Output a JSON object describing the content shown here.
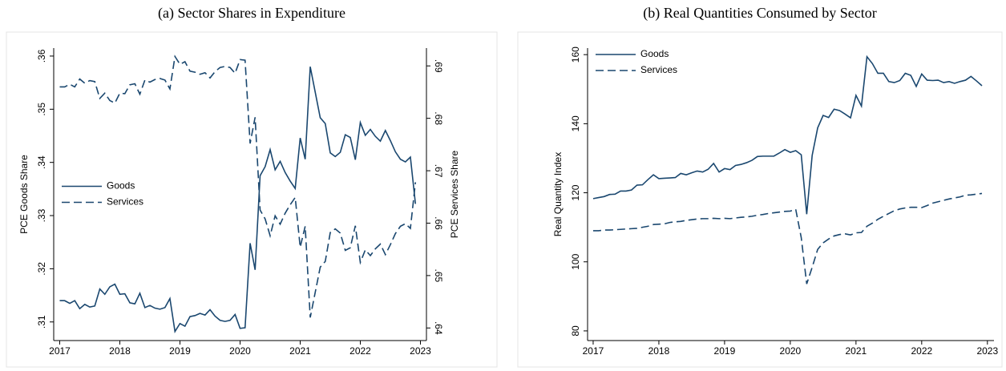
{
  "chart_data": [
    {
      "type": "line",
      "title": "(a) Sector Shares in Expenditure",
      "y_label": "PCE Goods Share",
      "y2_label": "PCE Services Share",
      "x": [
        2017,
        2017.083,
        2017.167,
        2017.25,
        2017.333,
        2017.417,
        2017.5,
        2017.583,
        2017.667,
        2017.75,
        2017.833,
        2017.917,
        2018,
        2018.083,
        2018.167,
        2018.25,
        2018.333,
        2018.417,
        2018.5,
        2018.583,
        2018.667,
        2018.75,
        2018.833,
        2018.917,
        2019,
        2019.083,
        2019.167,
        2019.25,
        2019.333,
        2019.417,
        2019.5,
        2019.583,
        2019.667,
        2019.75,
        2019.833,
        2019.917,
        2020,
        2020.083,
        2020.167,
        2020.25,
        2020.333,
        2020.417,
        2020.5,
        2020.583,
        2020.667,
        2020.75,
        2020.833,
        2020.917,
        2021,
        2021.083,
        2021.167,
        2021.25,
        2021.333,
        2021.417,
        2021.5,
        2021.583,
        2021.667,
        2021.75,
        2021.833,
        2021.917,
        2022,
        2022.083,
        2022.167,
        2022.25,
        2022.333,
        2022.417,
        2022.5,
        2022.583,
        2022.667,
        2022.75,
        2022.833,
        2022.917
      ],
      "series": [
        {
          "name": "Goods",
          "color": "#1a476f",
          "line_style": "solid",
          "axis": "y",
          "values": [
            0.314,
            0.314,
            0.3135,
            0.314,
            0.3125,
            0.3133,
            0.3128,
            0.313,
            0.3162,
            0.3152,
            0.3166,
            0.3171,
            0.3152,
            0.3153,
            0.3136,
            0.3134,
            0.3154,
            0.3127,
            0.3131,
            0.3126,
            0.3124,
            0.3127,
            0.3144,
            0.3082,
            0.3097,
            0.3092,
            0.311,
            0.3112,
            0.3116,
            0.3113,
            0.3123,
            0.3111,
            0.3103,
            0.3101,
            0.3103,
            0.3114,
            0.3088,
            0.3089,
            0.3248,
            0.3198,
            0.3375,
            0.3392,
            0.3424,
            0.3386,
            0.3402,
            0.3381,
            0.3365,
            0.3351,
            0.3446,
            0.3406,
            0.358,
            0.3532,
            0.3484,
            0.3473,
            0.3418,
            0.3411,
            0.3419,
            0.3452,
            0.3447,
            0.3405,
            0.3475,
            0.3451,
            0.3462,
            0.3449,
            0.344,
            0.346,
            0.3441,
            0.342,
            0.3406,
            0.3401,
            0.341,
            0.3322
          ]
        },
        {
          "name": "Services",
          "color": "#1a476f",
          "line_style": "dashed",
          "axis": "y2",
          "values": [
            0.686,
            0.686,
            0.6865,
            0.686,
            0.6875,
            0.6867,
            0.6872,
            0.687,
            0.6838,
            0.6848,
            0.6834,
            0.6829,
            0.6848,
            0.6847,
            0.6864,
            0.6866,
            0.6846,
            0.6873,
            0.6869,
            0.6874,
            0.6876,
            0.6873,
            0.6856,
            0.6918,
            0.6903,
            0.6908,
            0.689,
            0.6888,
            0.6884,
            0.6887,
            0.6877,
            0.6889,
            0.6897,
            0.6899,
            0.6897,
            0.6886,
            0.6912,
            0.6911,
            0.6752,
            0.6802,
            0.6625,
            0.6608,
            0.6576,
            0.6614,
            0.6598,
            0.6619,
            0.6635,
            0.6649,
            0.6554,
            0.6594,
            0.642,
            0.6468,
            0.6516,
            0.6527,
            0.6582,
            0.6589,
            0.6581,
            0.6548,
            0.6553,
            0.6595,
            0.6525,
            0.6549,
            0.6538,
            0.6551,
            0.656,
            0.654,
            0.6559,
            0.658,
            0.6594,
            0.6599,
            0.659,
            0.6678
          ]
        }
      ],
      "xlim": [
        2016.9,
        2023.1
      ],
      "xticks": [
        2017,
        2018,
        2019,
        2020,
        2021,
        2022,
        2023
      ],
      "ylim": [
        0.3065,
        0.3615
      ],
      "yticks": [
        {
          "value": 0.31,
          "label": ".31"
        },
        {
          "value": 0.32,
          "label": ".32"
        },
        {
          "value": 0.33,
          "label": ".33"
        },
        {
          "value": 0.34,
          "label": ".34"
        },
        {
          "value": 0.35,
          "label": ".35"
        },
        {
          "value": 0.36,
          "label": ".36"
        }
      ],
      "y2lim": [
        0.6376,
        0.6934
      ],
      "y2ticks": [
        {
          "value": 0.64,
          "label": ".64"
        },
        {
          "value": 0.65,
          "label": ".65"
        },
        {
          "value": 0.66,
          "label": ".66"
        },
        {
          "value": 0.67,
          "label": ".67"
        },
        {
          "value": 0.68,
          "label": ".68"
        },
        {
          "value": 0.69,
          "label": ".69"
        }
      ],
      "legend": "left"
    },
    {
      "type": "line",
      "title": "(b) Real Quantities Consumed by Sector",
      "y_label": "Real Quantity Index",
      "x": [
        2017,
        2017.083,
        2017.167,
        2017.25,
        2017.333,
        2017.417,
        2017.5,
        2017.583,
        2017.667,
        2017.75,
        2017.833,
        2017.917,
        2018,
        2018.083,
        2018.167,
        2018.25,
        2018.333,
        2018.417,
        2018.5,
        2018.583,
        2018.667,
        2018.75,
        2018.833,
        2018.917,
        2019,
        2019.083,
        2019.167,
        2019.25,
        2019.333,
        2019.417,
        2019.5,
        2019.583,
        2019.667,
        2019.75,
        2019.833,
        2019.917,
        2020,
        2020.083,
        2020.167,
        2020.25,
        2020.333,
        2020.417,
        2020.5,
        2020.583,
        2020.667,
        2020.75,
        2020.833,
        2020.917,
        2021,
        2021.083,
        2021.167,
        2021.25,
        2021.333,
        2021.417,
        2021.5,
        2021.583,
        2021.667,
        2021.75,
        2021.833,
        2021.917,
        2022,
        2022.083,
        2022.167,
        2022.25,
        2022.333,
        2022.417,
        2022.5,
        2022.583,
        2022.667,
        2022.75,
        2022.833,
        2022.917
      ],
      "series": [
        {
          "name": "Goods",
          "color": "#1a476f",
          "line_style": "solid",
          "values": [
            118.3,
            118.6,
            118.9,
            119.5,
            119.6,
            120.5,
            120.5,
            120.8,
            122.2,
            122.3,
            123.8,
            125.2,
            124.1,
            124.2,
            124.3,
            124.4,
            125.6,
            125.2,
            125.8,
            126.3,
            126.0,
            126.8,
            128.5,
            126.0,
            127.0,
            126.7,
            127.9,
            128.2,
            128.7,
            129.4,
            130.5,
            130.6,
            130.6,
            130.6,
            131.5,
            132.5,
            131.7,
            132.2,
            131.0,
            113.8,
            130.8,
            138.8,
            142.4,
            141.8,
            144.2,
            143.8,
            142.8,
            141.7,
            148.2,
            145.1,
            159.4,
            157.4,
            154.6,
            154.6,
            152.2,
            151.9,
            152.5,
            154.6,
            154.0,
            150.8,
            154.4,
            152.6,
            152.5,
            152.6,
            151.9,
            152.2,
            151.7,
            152.2,
            152.6,
            153.7,
            152.4,
            151.0
          ]
        },
        {
          "name": "Services",
          "color": "#1a476f",
          "line_style": "dashed",
          "values": [
            109.0,
            109.0,
            109.2,
            109.2,
            109.3,
            109.4,
            109.5,
            109.6,
            109.7,
            110.0,
            110.3,
            110.8,
            110.9,
            111.0,
            111.4,
            111.6,
            111.7,
            112.0,
            112.2,
            112.4,
            112.5,
            112.5,
            112.6,
            112.5,
            112.6,
            112.5,
            112.7,
            112.9,
            113.0,
            113.2,
            113.5,
            113.7,
            114.0,
            114.2,
            114.4,
            114.6,
            114.7,
            115.2,
            107.0,
            93.6,
            98.4,
            103.6,
            105.5,
            106.6,
            107.5,
            107.9,
            108.1,
            107.8,
            108.4,
            108.5,
            110.3,
            111.2,
            112.3,
            113.2,
            114.0,
            114.8,
            115.3,
            115.6,
            115.8,
            115.8,
            115.7,
            116.3,
            117.0,
            117.4,
            117.8,
            118.2,
            118.5,
            118.8,
            119.3,
            119.4,
            119.6,
            119.8
          ]
        }
      ],
      "xlim": [
        2016.915,
        2023.1
      ],
      "xticks": [
        2017,
        2018,
        2019,
        2020,
        2021,
        2022,
        2023
      ],
      "ylim": [
        77.2,
        161.9
      ],
      "yticks": [
        80,
        100,
        120,
        140,
        160
      ],
      "legend": "upper left"
    }
  ]
}
